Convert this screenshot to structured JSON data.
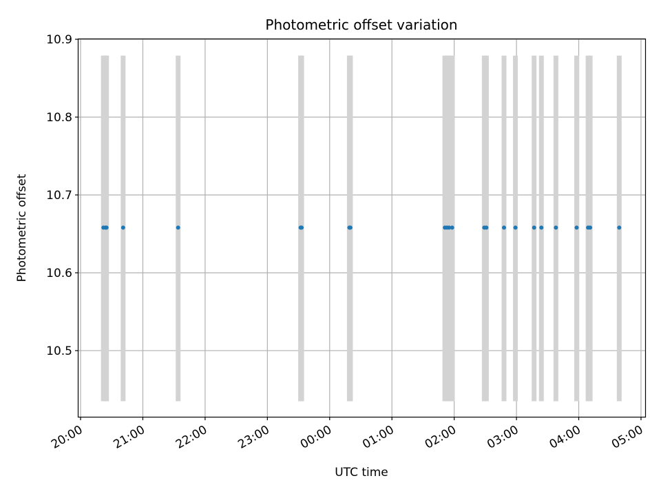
{
  "chart_data": {
    "type": "scatter",
    "title": "Photometric offset variation",
    "xlabel": "UTC time",
    "ylabel": "Photometric offset",
    "x_axis_type": "time",
    "xlim": [
      "19:58",
      "05:04"
    ],
    "ylim": [
      10.415,
      10.9
    ],
    "grid": true,
    "x_ticks": [
      "20:00",
      "21:00",
      "22:00",
      "23:00",
      "00:00",
      "01:00",
      "02:00",
      "03:00",
      "04:00",
      "05:00"
    ],
    "y_ticks": [
      "10.5",
      "10.6",
      "10.7",
      "10.8",
      "10.9"
    ],
    "point_color": "#1f77b4",
    "band_color": "#d3d3d3",
    "band_range": [
      10.435,
      10.879
    ],
    "points": [
      {
        "x": "20:22",
        "y": 10.658
      },
      {
        "x": "20:24",
        "y": 10.658
      },
      {
        "x": "20:25",
        "y": 10.658
      },
      {
        "x": "20:41",
        "y": 10.658
      },
      {
        "x": "21:34",
        "y": 10.658
      },
      {
        "x": "23:32",
        "y": 10.658
      },
      {
        "x": "23:33",
        "y": 10.658
      },
      {
        "x": "00:19",
        "y": 10.658
      },
      {
        "x": "00:20",
        "y": 10.658
      },
      {
        "x": "01:51",
        "y": 10.658
      },
      {
        "x": "01:53",
        "y": 10.658
      },
      {
        "x": "01:55",
        "y": 10.658
      },
      {
        "x": "01:58",
        "y": 10.658
      },
      {
        "x": "02:29",
        "y": 10.658
      },
      {
        "x": "02:31",
        "y": 10.658
      },
      {
        "x": "02:48",
        "y": 10.658
      },
      {
        "x": "02:59",
        "y": 10.658
      },
      {
        "x": "03:17",
        "y": 10.658
      },
      {
        "x": "03:24",
        "y": 10.658
      },
      {
        "x": "03:38",
        "y": 10.658
      },
      {
        "x": "03:58",
        "y": 10.658
      },
      {
        "x": "04:09",
        "y": 10.658
      },
      {
        "x": "04:11",
        "y": 10.658
      },
      {
        "x": "04:39",
        "y": 10.658
      }
    ]
  }
}
